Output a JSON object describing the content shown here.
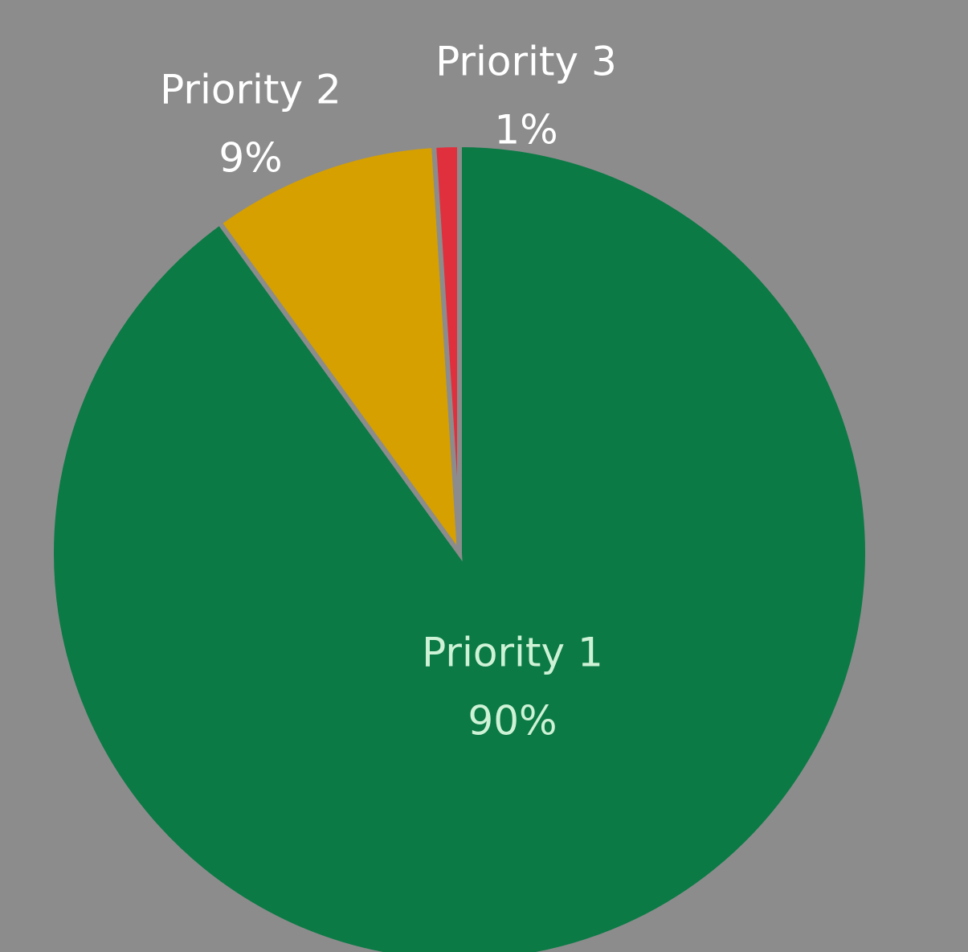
{
  "chart_data": {
    "type": "pie",
    "categories": [
      "Priority 1",
      "Priority 2",
      "Priority 3"
    ],
    "values": [
      90,
      9,
      1
    ],
    "value_labels": [
      "90%",
      "9%",
      "1%"
    ],
    "colors": [
      "#0b7a45",
      "#d6a000",
      "#e0303e"
    ],
    "start_angle": 0,
    "direction": "clockwise"
  }
}
